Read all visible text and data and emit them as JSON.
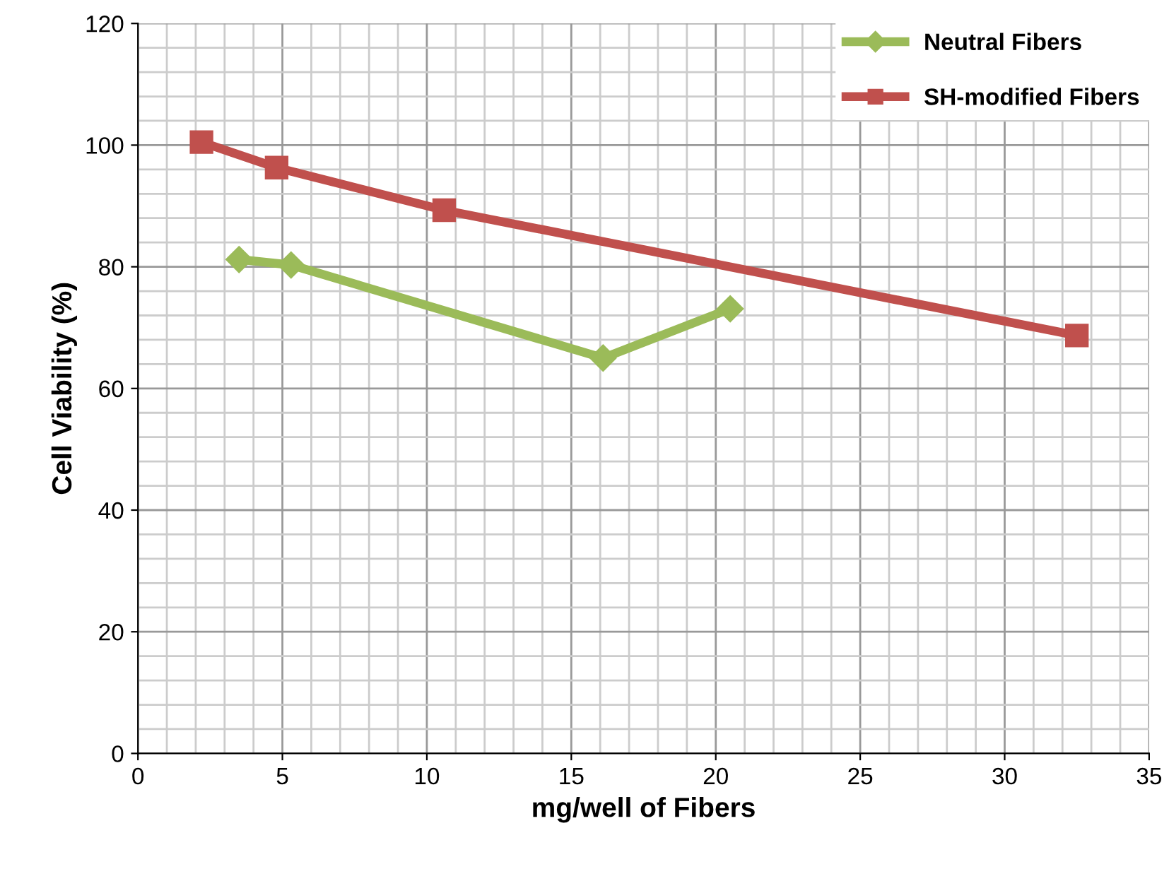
{
  "chart_data": {
    "type": "line",
    "xlabel": "mg/well of Fibers",
    "ylabel": "Cell Viability (%)",
    "xlim": [
      0,
      35
    ],
    "xticks": [
      0,
      5,
      10,
      15,
      20,
      25,
      30,
      35
    ],
    "ylim": [
      0,
      120
    ],
    "yticks": [
      0,
      20,
      40,
      60,
      80,
      100,
      120
    ],
    "grid": true,
    "legend": "top right",
    "line_style": "solid",
    "series": [
      {
        "name": "Neutral Fibers",
        "color": "#9bbb59",
        "marker": "diamond",
        "x": [
          3.5,
          5.3,
          16.1,
          20.5
        ],
        "values": [
          81.2,
          80.3,
          65.0,
          73.1
        ]
      },
      {
        "name": "SH-modified Fibers",
        "color": "#c0504d",
        "marker": "square",
        "x": [
          2.2,
          4.8,
          10.6,
          32.5
        ],
        "values": [
          100.5,
          96.3,
          89.3,
          68.7
        ]
      }
    ]
  }
}
